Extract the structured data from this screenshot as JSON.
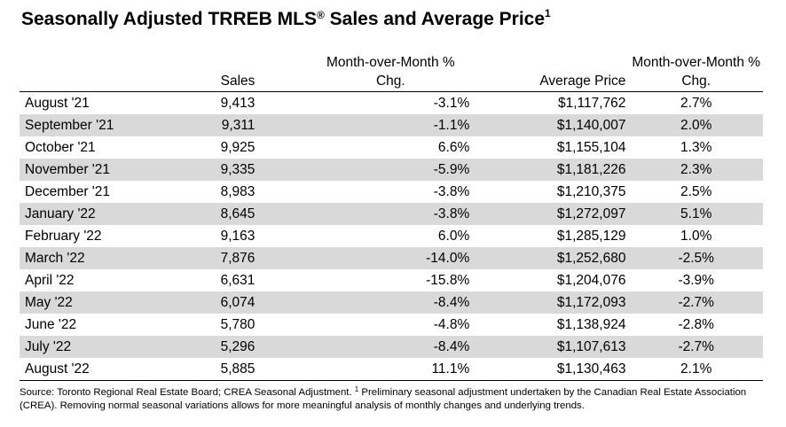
{
  "title": {
    "text": "Seasonally Adjusted TRREB MLS",
    "reg": "®",
    "suffix": " Sales and Average Price",
    "footnote_mark": "1"
  },
  "table": {
    "headers": {
      "sales": "Sales",
      "mom_sales": "Month-over-Month % Chg.",
      "avg_price": "Average Price",
      "mom_price": "Month-over-Month % Chg."
    },
    "rows": [
      {
        "month": "August '21",
        "sales": "9,413",
        "mom_sales": "-3.1%",
        "avg_price": "$1,117,762",
        "mom_price": "2.7%"
      },
      {
        "month": "September '21",
        "sales": "9,311",
        "mom_sales": "-1.1%",
        "avg_price": "$1,140,007",
        "mom_price": "2.0%"
      },
      {
        "month": "October '21",
        "sales": "9,925",
        "mom_sales": "6.6%",
        "avg_price": "$1,155,104",
        "mom_price": "1.3%"
      },
      {
        "month": "November '21",
        "sales": "9,335",
        "mom_sales": "-5.9%",
        "avg_price": "$1,181,226",
        "mom_price": "2.3%"
      },
      {
        "month": "December '21",
        "sales": "8,983",
        "mom_sales": "-3.8%",
        "avg_price": "$1,210,375",
        "mom_price": "2.5%"
      },
      {
        "month": "January '22",
        "sales": "8,645",
        "mom_sales": "-3.8%",
        "avg_price": "$1,272,097",
        "mom_price": "5.1%"
      },
      {
        "month": "February '22",
        "sales": "9,163",
        "mom_sales": "6.0%",
        "avg_price": "$1,285,129",
        "mom_price": "1.0%"
      },
      {
        "month": "March '22",
        "sales": "7,876",
        "mom_sales": "-14.0%",
        "avg_price": "$1,252,680",
        "mom_price": "-2.5%"
      },
      {
        "month": "April '22",
        "sales": "6,631",
        "mom_sales": "-15.8%",
        "avg_price": "$1,204,076",
        "mom_price": "-3.9%"
      },
      {
        "month": "May '22",
        "sales": "6,074",
        "mom_sales": "-8.4%",
        "avg_price": "$1,172,093",
        "mom_price": "-2.7%"
      },
      {
        "month": "June '22",
        "sales": "5,780",
        "mom_sales": "-4.8%",
        "avg_price": "$1,138,924",
        "mom_price": "-2.8%"
      },
      {
        "month": "July '22",
        "sales": "5,296",
        "mom_sales": "-8.4%",
        "avg_price": "$1,107,613",
        "mom_price": "-2.7%"
      },
      {
        "month": "August '22",
        "sales": "5,885",
        "mom_sales": "11.1%",
        "avg_price": "$1,130,463",
        "mom_price": "2.1%"
      }
    ]
  },
  "footer": {
    "part1": "Source: Toronto Regional Real Estate Board; CREA Seasonal Adjustment. ",
    "mark": "1",
    "part2": " Preliminary seasonal adjustment undertaken by the Canadian Real Estate Association (CREA).  Removing normal seasonal variations allows for more meaningful analysis of monthly changes and underlying trends."
  },
  "colors": {
    "stripe": "#d9d9d9",
    "text": "#000000",
    "background": "#ffffff"
  }
}
